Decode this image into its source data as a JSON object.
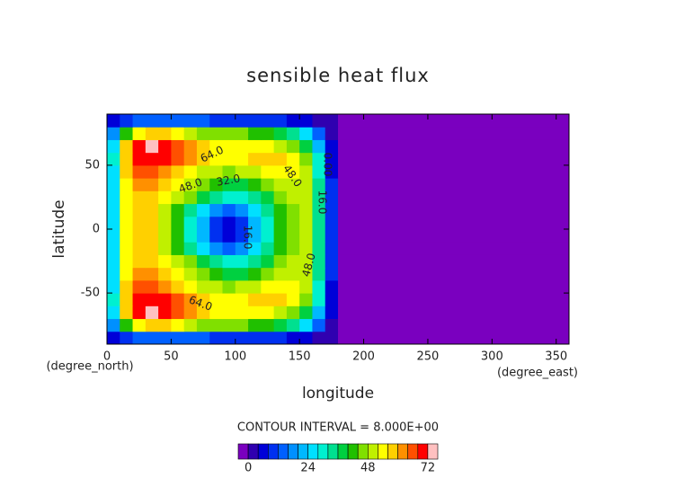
{
  "chart_data": {
    "type": "contour",
    "title": "sensible heat flux",
    "x_label": "longitude",
    "y_label": "latitude",
    "x_unit": "(degree_east)",
    "y_unit": "(degree_north)",
    "xlim": [
      0,
      360
    ],
    "ylim": [
      -90,
      90
    ],
    "xticks": [
      0,
      50,
      100,
      150,
      200,
      250,
      300,
      350
    ],
    "yticks": [
      -50,
      0,
      50
    ],
    "x_edges": [
      0,
      10,
      20,
      30,
      40,
      50,
      60,
      70,
      80,
      90,
      100,
      110,
      120,
      130,
      140,
      150,
      160,
      170,
      180,
      360
    ],
    "y_edges": [
      -90,
      -80,
      -70,
      -60,
      -50,
      -40,
      -30,
      -20,
      -10,
      0,
      10,
      20,
      30,
      40,
      50,
      60,
      70,
      80,
      90
    ],
    "z": [
      [
        4,
        8,
        12,
        14,
        14,
        14,
        12,
        12,
        10,
        10,
        10,
        10,
        8,
        8,
        6,
        4,
        2,
        1,
        -2
      ],
      [
        18,
        40,
        52,
        56,
        56,
        54,
        50,
        46,
        44,
        44,
        44,
        42,
        40,
        36,
        32,
        24,
        14,
        3,
        -2
      ],
      [
        26,
        56,
        68,
        72,
        70,
        66,
        62,
        58,
        55,
        54,
        54,
        54,
        52,
        50,
        46,
        38,
        22,
        5,
        -2
      ],
      [
        28,
        58,
        68,
        70,
        68,
        64,
        60,
        57,
        55,
        54,
        55,
        56,
        56,
        56,
        52,
        44,
        28,
        6,
        -2
      ],
      [
        27,
        56,
        66,
        64,
        62,
        58,
        54,
        51,
        48,
        47,
        48,
        50,
        52,
        54,
        52,
        48,
        30,
        7,
        -2
      ],
      [
        26,
        54,
        62,
        60,
        57,
        54,
        50,
        44,
        40,
        36,
        37,
        40,
        44,
        48,
        50,
        48,
        32,
        8,
        -2
      ],
      [
        25,
        53,
        59,
        57,
        54,
        50,
        44,
        38,
        32,
        28,
        30,
        34,
        39,
        44,
        48,
        48,
        32,
        8,
        -2
      ],
      [
        24,
        52,
        58,
        56,
        50,
        42,
        34,
        25,
        17,
        14,
        17,
        25,
        34,
        42,
        47,
        48,
        32,
        8,
        -2
      ],
      [
        24,
        52,
        58,
        56,
        48,
        40,
        30,
        20,
        10,
        6,
        10,
        20,
        30,
        40,
        46,
        48,
        32,
        8,
        -2
      ],
      [
        24,
        52,
        58,
        56,
        48,
        40,
        30,
        20,
        10,
        6,
        10,
        20,
        30,
        40,
        46,
        48,
        32,
        8,
        -2
      ],
      [
        24,
        52,
        58,
        56,
        50,
        42,
        34,
        25,
        17,
        14,
        17,
        25,
        34,
        42,
        47,
        48,
        32,
        8,
        -2
      ],
      [
        25,
        53,
        59,
        57,
        54,
        50,
        44,
        38,
        32,
        28,
        30,
        34,
        39,
        44,
        48,
        48,
        32,
        8,
        -2
      ],
      [
        26,
        54,
        62,
        60,
        57,
        54,
        50,
        44,
        40,
        36,
        37,
        40,
        44,
        48,
        50,
        48,
        32,
        8,
        -2
      ],
      [
        27,
        56,
        66,
        64,
        62,
        58,
        54,
        51,
        48,
        47,
        48,
        50,
        52,
        54,
        52,
        48,
        30,
        7,
        -2
      ],
      [
        28,
        58,
        68,
        70,
        68,
        64,
        60,
        57,
        55,
        54,
        55,
        56,
        56,
        56,
        52,
        44,
        28,
        6,
        -2
      ],
      [
        26,
        56,
        68,
        72,
        70,
        66,
        62,
        58,
        55,
        54,
        54,
        54,
        52,
        50,
        46,
        38,
        22,
        5,
        -2
      ],
      [
        18,
        40,
        52,
        56,
        56,
        54,
        50,
        46,
        44,
        44,
        44,
        42,
        40,
        36,
        32,
        24,
        14,
        3,
        -2
      ],
      [
        4,
        8,
        12,
        14,
        14,
        14,
        12,
        12,
        10,
        10,
        10,
        10,
        8,
        8,
        6,
        4,
        2,
        1,
        -2
      ]
    ],
    "contour_interval": "CONTOUR INTERVAL = 8.000E+00",
    "contour_labels": [
      "64.0",
      "48.0",
      "32.0",
      "16.0",
      "48.0",
      "48.0",
      "64.0",
      "16.0",
      "0.00"
    ],
    "colorbar": {
      "levels": [
        -4,
        0,
        4,
        8,
        12,
        16,
        20,
        24,
        28,
        32,
        36,
        40,
        44,
        48,
        52,
        56,
        60,
        64,
        68,
        72,
        76
      ],
      "colors": [
        "#7a00bf",
        "#3000b0",
        "#0000d8",
        "#0030f0",
        "#0060ff",
        "#0090ff",
        "#00b8ff",
        "#00e0ff",
        "#00f0d0",
        "#00e090",
        "#00d040",
        "#20c000",
        "#80e000",
        "#c0f000",
        "#ffff00",
        "#ffd000",
        "#ff9000",
        "#ff5000",
        "#ff0000",
        "#ffc0c0"
      ],
      "ticks": [
        0,
        24,
        48,
        72
      ]
    }
  }
}
